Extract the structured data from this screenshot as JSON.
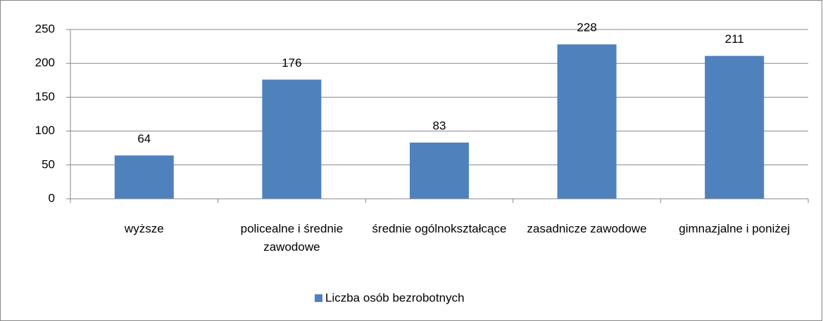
{
  "chart_data": {
    "type": "bar",
    "categories": [
      "wyższe",
      "policealne i średnie zawodowe",
      "średnie ogólnokształcące",
      "zasadnicze zawodowe",
      "gimnazjalne i poniżej"
    ],
    "series": [
      {
        "name": "Liczba osób bezrobotnych",
        "color": "#4f81bd",
        "values": [
          64,
          176,
          83,
          228,
          211
        ]
      }
    ],
    "ylim": [
      0,
      250
    ],
    "yticks": [
      0,
      50,
      100,
      150,
      200,
      250
    ],
    "grid": true,
    "legend": "bottom"
  }
}
